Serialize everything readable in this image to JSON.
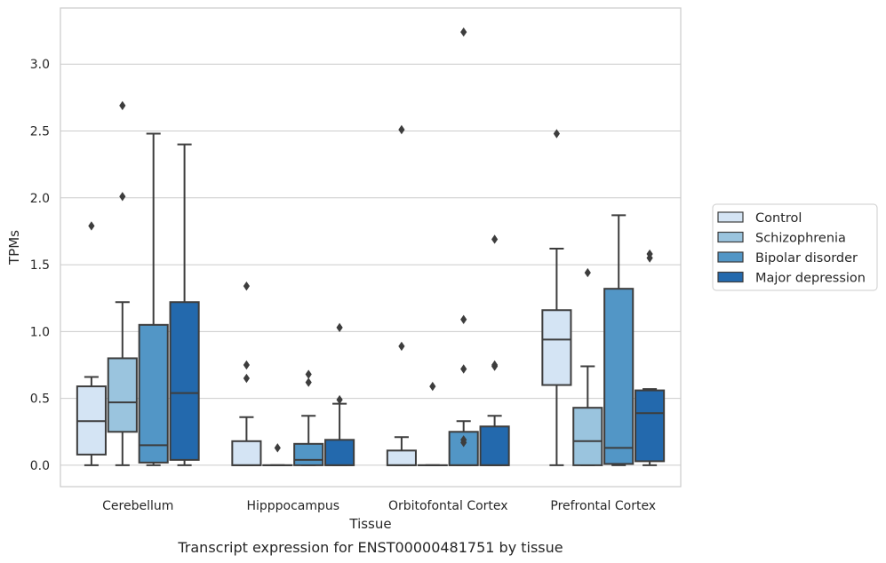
{
  "chart_data": {
    "type": "box",
    "title": "",
    "caption": "Transcript expression for ENST00000481751 by tissue",
    "xlabel": "Tissue",
    "ylabel": "TPMs",
    "ylim": [
      -0.16,
      3.42
    ],
    "yticks": [
      "0.0",
      "0.5",
      "1.0",
      "1.5",
      "2.0",
      "2.5",
      "3.0"
    ],
    "ytick_values": [
      0.0,
      0.5,
      1.0,
      1.5,
      2.0,
      2.5,
      3.0
    ],
    "grid": "horizontal",
    "legend_placement": "right",
    "categories": [
      "Cerebellum",
      "Hipppocampus",
      "Orbitofontal Cortex",
      "Prefrontal Cortex"
    ],
    "series": [
      {
        "name": "Control",
        "color": "#d4e4f4",
        "boxes": [
          {
            "whisker_low": 0.0,
            "q1": 0.08,
            "median": 0.33,
            "q3": 0.59,
            "whisker_high": 0.66,
            "outliers": [
              1.79
            ]
          },
          {
            "whisker_low": 0.0,
            "q1": 0.0,
            "median": 0.0,
            "q3": 0.18,
            "whisker_high": 0.36,
            "outliers": [
              1.34,
              0.75,
              0.65
            ]
          },
          {
            "whisker_low": 0.0,
            "q1": 0.0,
            "median": 0.0,
            "q3": 0.11,
            "whisker_high": 0.21,
            "outliers": [
              2.51,
              0.89
            ]
          },
          {
            "whisker_low": 0.0,
            "q1": 0.6,
            "median": 0.94,
            "q3": 1.16,
            "whisker_high": 1.62,
            "outliers": [
              2.48
            ]
          }
        ]
      },
      {
        "name": "Schizophrenia",
        "color": "#9ac4de",
        "boxes": [
          {
            "whisker_low": 0.0,
            "q1": 0.25,
            "median": 0.47,
            "q3": 0.8,
            "whisker_high": 1.22,
            "outliers": [
              2.69,
              2.01
            ]
          },
          {
            "whisker_low": 0.0,
            "q1": 0.0,
            "median": 0.0,
            "q3": 0.0,
            "whisker_high": 0.0,
            "outliers": [
              0.13
            ]
          },
          {
            "whisker_low": 0.0,
            "q1": 0.0,
            "median": 0.0,
            "q3": 0.0,
            "whisker_high": 0.0,
            "outliers": [
              0.59
            ]
          },
          {
            "whisker_low": 0.0,
            "q1": 0.0,
            "median": 0.18,
            "q3": 0.43,
            "whisker_high": 0.74,
            "outliers": [
              1.44
            ]
          }
        ]
      },
      {
        "name": "Bipolar disorder",
        "color": "#5296c6",
        "boxes": [
          {
            "whisker_low": 0.0,
            "q1": 0.02,
            "median": 0.15,
            "q3": 1.05,
            "whisker_high": 2.48,
            "outliers": []
          },
          {
            "whisker_low": 0.0,
            "q1": 0.0,
            "median": 0.04,
            "q3": 0.16,
            "whisker_high": 0.37,
            "outliers": [
              0.68,
              0.62
            ]
          },
          {
            "whisker_low": 0.0,
            "q1": 0.0,
            "median": 0.0,
            "q3": 0.25,
            "whisker_high": 0.33,
            "outliers": [
              3.24,
              1.09,
              0.72,
              0.19,
              0.17
            ]
          },
          {
            "whisker_low": 0.0,
            "q1": 0.01,
            "median": 0.13,
            "q3": 1.32,
            "whisker_high": 1.87,
            "outliers": []
          }
        ]
      },
      {
        "name": "Major depression",
        "color": "#2369ad",
        "boxes": [
          {
            "whisker_low": 0.0,
            "q1": 0.04,
            "median": 0.54,
            "q3": 1.22,
            "whisker_high": 2.4,
            "outliers": []
          },
          {
            "whisker_low": 0.0,
            "q1": 0.0,
            "median": 0.0,
            "q3": 0.19,
            "whisker_high": 0.46,
            "outliers": [
              1.03,
              0.49
            ]
          },
          {
            "whisker_low": 0.0,
            "q1": 0.0,
            "median": 0.0,
            "q3": 0.29,
            "whisker_high": 0.37,
            "outliers": [
              1.69,
              0.75,
              0.74
            ]
          },
          {
            "whisker_low": 0.0,
            "q1": 0.03,
            "median": 0.39,
            "q3": 0.56,
            "whisker_high": 0.57,
            "outliers": [
              1.58,
              1.55
            ]
          }
        ]
      }
    ]
  }
}
